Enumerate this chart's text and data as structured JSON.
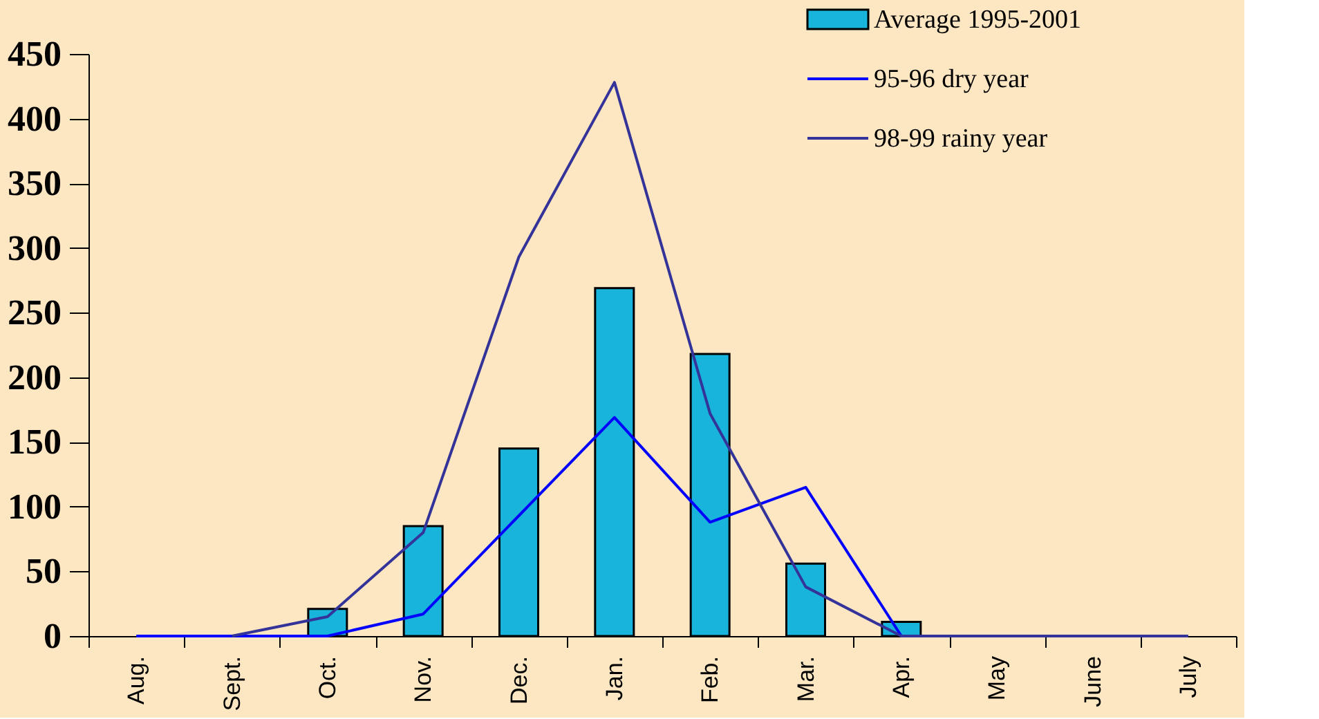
{
  "chart_data": {
    "type": "bar",
    "categories": [
      "Aug.",
      "Sept.",
      "Oct.",
      "Nov.",
      "Dec.",
      "Jan.",
      "Feb.",
      "Mar.",
      "Apr.",
      "May",
      "June",
      "July"
    ],
    "series": [
      {
        "name": "Average 1995-2001",
        "color": "#19b4dc",
        "values": [
          null,
          null,
          21,
          85,
          145,
          269,
          218,
          56,
          11,
          null,
          null,
          null
        ]
      },
      {
        "name": "95-96 dry year",
        "type": "line",
        "color": "#0000ff",
        "values": [
          0,
          0,
          0,
          17,
          93,
          169,
          88,
          115,
          0,
          0,
          null,
          null
        ]
      },
      {
        "name": "98-99 rainy year",
        "type": "line",
        "color": "#333399",
        "values": [
          null,
          0,
          15,
          80,
          293,
          428,
          172,
          38,
          0,
          0,
          0,
          0
        ]
      }
    ],
    "ylim": [
      0,
      450
    ],
    "yticks": [
      0,
      50,
      100,
      150,
      200,
      250,
      300,
      350,
      400,
      450
    ],
    "grid": false,
    "legend": "top right"
  }
}
